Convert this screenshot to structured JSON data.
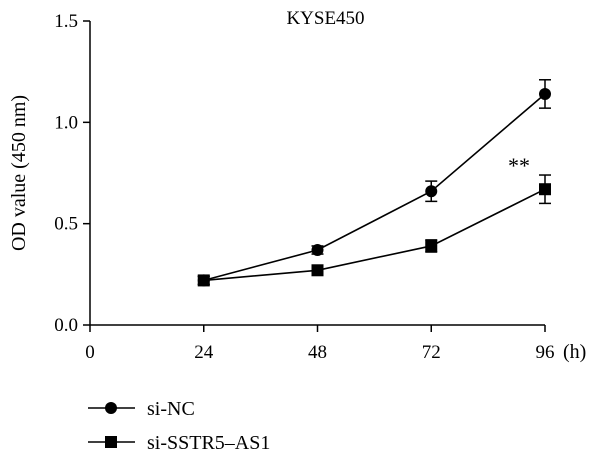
{
  "chart_data": {
    "type": "line",
    "title": "KYSE450",
    "xlabel": "(h)",
    "ylabel": "OD value (450 nm)",
    "x_ticks": [
      "0",
      "24",
      "48",
      "72",
      "96"
    ],
    "y_ticks": [
      "0.0",
      "0.5",
      "1.0",
      "1.5"
    ],
    "xlim": [
      0,
      96
    ],
    "ylim": [
      0,
      1.5
    ],
    "grid": false,
    "legend_position": "bottom-left",
    "series": [
      {
        "name": "si-NC",
        "marker": "circle",
        "x": [
          24,
          48,
          72,
          96
        ],
        "y": [
          0.22,
          0.37,
          0.66,
          1.14
        ],
        "error": [
          0.02,
          0.02,
          0.05,
          0.07
        ]
      },
      {
        "name": "si-SSTR5–AS1",
        "marker": "square",
        "x": [
          24,
          48,
          72,
          96
        ],
        "y": [
          0.22,
          0.27,
          0.39,
          0.67
        ],
        "error": [
          0.02,
          0.02,
          0.03,
          0.07
        ]
      }
    ],
    "annotations": [
      {
        "text": "**",
        "x": 96,
        "y": 0.67
      }
    ],
    "colors": {
      "line": "#000000",
      "marker": "#000000"
    }
  }
}
